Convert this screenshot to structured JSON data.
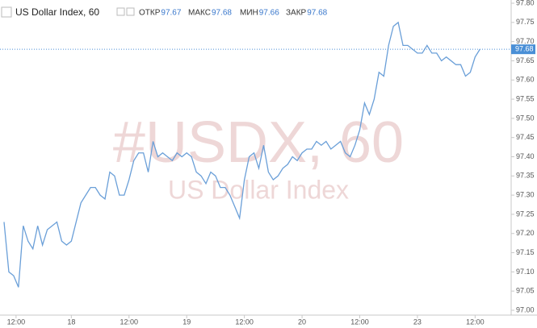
{
  "chart_data": {
    "type": "line",
    "title": "US Dollar Index, 60",
    "ohlc": [
      {
        "label": "ОТКР",
        "value": 97.67
      },
      {
        "label": "МАКС",
        "value": 97.68
      },
      {
        "label": "МИН",
        "value": 97.66
      },
      {
        "label": "ЗАКР",
        "value": 97.68
      }
    ],
    "watermark": "#USDX, 60",
    "watermark_subtitle": "US Dollar Index",
    "series": [
      {
        "name": "US Dollar Index",
        "color": "#6a9fd8",
        "values": [
          97.23,
          97.1,
          97.09,
          97.06,
          97.22,
          97.18,
          97.16,
          97.22,
          97.17,
          97.21,
          97.22,
          97.23,
          97.18,
          97.17,
          97.18,
          97.23,
          97.28,
          97.3,
          97.32,
          97.32,
          97.3,
          97.29,
          97.36,
          97.35,
          97.3,
          97.3,
          97.34,
          97.39,
          97.41,
          97.41,
          97.36,
          97.44,
          97.4,
          97.41,
          97.4,
          97.39,
          97.41,
          97.4,
          97.41,
          97.4,
          97.36,
          97.35,
          97.33,
          97.36,
          97.35,
          97.32,
          97.32,
          97.3,
          97.27,
          97.24,
          97.34,
          97.4,
          97.41,
          97.37,
          97.43,
          97.36,
          97.34,
          97.35,
          97.37,
          97.38,
          97.4,
          97.39,
          97.41,
          97.42,
          97.42,
          97.44,
          97.43,
          97.44,
          97.42,
          97.43,
          97.44,
          97.41,
          97.4,
          97.43,
          97.47,
          97.54,
          97.51,
          97.55,
          97.62,
          97.61,
          97.69,
          97.74,
          97.75,
          97.69,
          97.69,
          97.68,
          97.67,
          97.67,
          97.69,
          97.67,
          97.67,
          97.65,
          97.66,
          97.65,
          97.64,
          97.64,
          97.61,
          97.62,
          97.66,
          97.68
        ]
      }
    ],
    "last_price": 97.68,
    "last_price_color": "#4a8fd6",
    "xlim": [
      -0.84,
      105.5
    ],
    "xticks": [
      {
        "value": 2.5,
        "label": "12:00"
      },
      {
        "value": 14,
        "label": "18"
      },
      {
        "value": 26,
        "label": "12:00"
      },
      {
        "value": 38,
        "label": "19"
      },
      {
        "value": 50,
        "label": "12:00"
      },
      {
        "value": 62,
        "label": "20"
      },
      {
        "value": 74,
        "label": "12:00"
      },
      {
        "value": 86,
        "label": "23"
      },
      {
        "value": 98,
        "label": "12:00"
      }
    ],
    "ylim": [
      97.0,
      97.8
    ],
    "yticks": [
      {
        "value": 97.0,
        "label": "97.00"
      },
      {
        "value": 97.05,
        "label": "97.05"
      },
      {
        "value": 97.1,
        "label": "97.10"
      },
      {
        "value": 97.15,
        "label": "97.15"
      },
      {
        "value": 97.2,
        "label": "97.20"
      },
      {
        "value": 97.25,
        "label": "97.25"
      },
      {
        "value": 97.3,
        "label": "97.30"
      },
      {
        "value": 97.35,
        "label": "97.35"
      },
      {
        "value": 97.4,
        "label": "97.40"
      },
      {
        "value": 97.45,
        "label": "97.45"
      },
      {
        "value": 97.5,
        "label": "97.50"
      },
      {
        "value": 97.55,
        "label": "97.55"
      },
      {
        "value": 97.6,
        "label": "97.60"
      },
      {
        "value": 97.65,
        "label": "97.65"
      },
      {
        "value": 97.7,
        "label": "97.70"
      },
      {
        "value": 97.75,
        "label": "97.75"
      },
      {
        "value": 97.8,
        "label": "97.80"
      }
    ],
    "grid": false
  }
}
